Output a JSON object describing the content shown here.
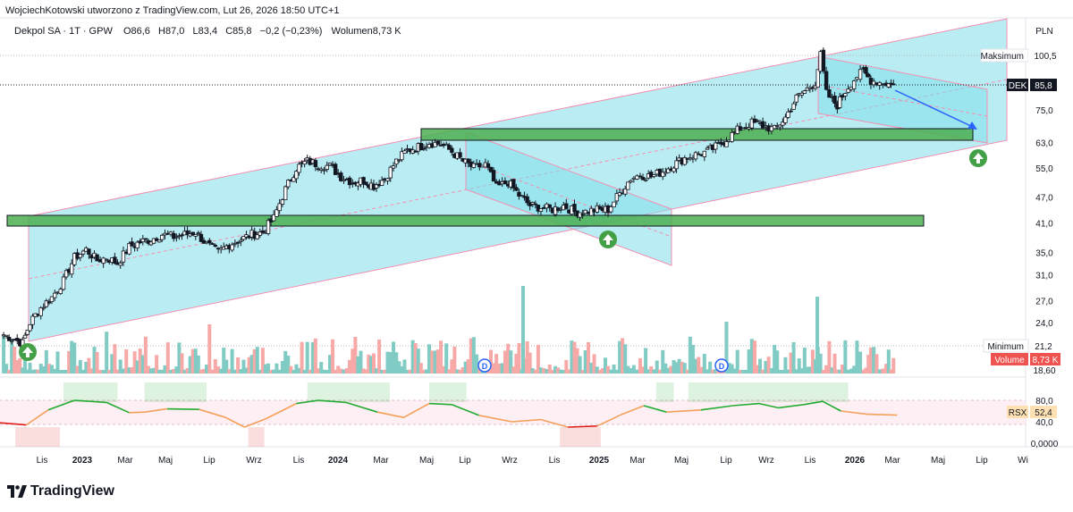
{
  "header": {
    "attribution": "WojciechKotowski utworzono z TradingView.com, Lut 26, 2026 18:50 UTC+1",
    "symbol_line": "Dekpol SA · 1T · GPW",
    "open": "O86,6",
    "high": "H87,0",
    "low": "L83,4",
    "close": "C85,8",
    "change": "−0,2 (−0,23%)",
    "volume": "Wolumen8,73 K"
  },
  "price_axis": {
    "currency": "PLN",
    "ticks": [
      "75,0",
      "63,0",
      "55,0",
      "47,0",
      "41,0",
      "35,0",
      "31,0",
      "27,0",
      "24,0",
      "18,60"
    ],
    "max_label": "Maksimum",
    "max_value": "100,5",
    "min_label": "Minimum",
    "min_value": "21,2",
    "last_symbol": "DEK",
    "last_value": "85,8",
    "volume_label": "Volume",
    "volume_value": "8,73 K"
  },
  "rsx_axis": {
    "ticks": [
      "80,0",
      "40,0",
      "0,0000"
    ],
    "label": "RSX",
    "value": "52,4"
  },
  "time_axis": {
    "labels": [
      "Lis",
      "2023",
      "Mar",
      "Maj",
      "Lip",
      "Wrz",
      "Lis",
      "2024",
      "Mar",
      "Maj",
      "Lip",
      "Wrz",
      "Lis",
      "2025",
      "Mar",
      "Maj",
      "Lip",
      "Wrz",
      "Lis",
      "2026",
      "Mar",
      "Maj",
      "Lip",
      "Wi"
    ],
    "bold": [
      "2023",
      "2024",
      "2025",
      "2026"
    ]
  },
  "annotations": {
    "dividend_marker": "D"
  },
  "footer": {
    "brand": "TradingView"
  },
  "colors": {
    "bull": "#ffffff",
    "bear": "#131722",
    "channel": "#b2ebf2",
    "support_zone": "#4caf50",
    "vol_up": "#80cbc4",
    "vol_down": "#f7a9a7",
    "rsx_up": "#22ab30",
    "rsx_mid": "#f5a05a",
    "rsx_down": "#e01b1b",
    "accent": "#2962ff",
    "last_price_bg": "#131722",
    "volume_bg": "#ef5350"
  },
  "chart_data": {
    "type": "candlestick",
    "title": "Dekpol SA · 1T · GPW",
    "ylabel": "PLN",
    "y_scale": "log",
    "ylim": [
      18.6,
      110
    ],
    "x_range": [
      "2022-10-15",
      "2026-08-20"
    ],
    "series": [
      {
        "name": "Dekpol SA",
        "points": [
          [
            "2022-10-20",
            22.5
          ],
          [
            "2022-11-15",
            21.5
          ],
          [
            "2022-11-25",
            24.0
          ],
          [
            "2022-12-10",
            26.0
          ],
          [
            "2022-12-25",
            27.5
          ],
          [
            "2023-01-10",
            30.0
          ],
          [
            "2023-01-25",
            34.0
          ],
          [
            "2023-02-10",
            35.5
          ],
          [
            "2023-02-25",
            33.5
          ],
          [
            "2023-03-10",
            34.0
          ],
          [
            "2023-03-25",
            33.0
          ],
          [
            "2023-04-10",
            36.0
          ],
          [
            "2023-04-25",
            37.0
          ],
          [
            "2023-05-10",
            37.5
          ],
          [
            "2023-05-25",
            38.5
          ],
          [
            "2023-06-10",
            38.0
          ],
          [
            "2023-06-25",
            38.5
          ],
          [
            "2023-07-10",
            39.0
          ],
          [
            "2023-07-25",
            36.5
          ],
          [
            "2023-08-10",
            35.0
          ],
          [
            "2023-08-25",
            36.5
          ],
          [
            "2023-09-10",
            37.5
          ],
          [
            "2023-09-25",
            38.5
          ],
          [
            "2023-10-10",
            39.0
          ],
          [
            "2023-10-25",
            42.0
          ],
          [
            "2023-11-10",
            49.0
          ],
          [
            "2023-11-25",
            55.0
          ],
          [
            "2023-12-10",
            57.0
          ],
          [
            "2023-12-25",
            56.0
          ],
          [
            "2024-01-10",
            55.5
          ],
          [
            "2024-01-25",
            52.5
          ],
          [
            "2024-02-10",
            51.0
          ],
          [
            "2024-02-25",
            51.5
          ],
          [
            "2024-03-10",
            50.0
          ],
          [
            "2024-03-25",
            52.0
          ],
          [
            "2024-04-10",
            57.0
          ],
          [
            "2024-04-25",
            60.5
          ],
          [
            "2024-05-10",
            61.5
          ],
          [
            "2024-05-25",
            63.0
          ],
          [
            "2024-06-10",
            62.5
          ],
          [
            "2024-06-25",
            60.0
          ],
          [
            "2024-07-10",
            57.0
          ],
          [
            "2024-07-25",
            55.0
          ],
          [
            "2024-08-10",
            56.0
          ],
          [
            "2024-08-25",
            49.5
          ],
          [
            "2024-09-10",
            51.0
          ],
          [
            "2024-09-25",
            47.5
          ],
          [
            "2024-10-10",
            45.0
          ],
          [
            "2024-10-25",
            44.5
          ],
          [
            "2024-11-10",
            44.0
          ],
          [
            "2024-11-25",
            45.0
          ],
          [
            "2024-12-10",
            43.5
          ],
          [
            "2024-12-25",
            43.5
          ],
          [
            "2025-01-10",
            44.0
          ],
          [
            "2025-01-25",
            44.0
          ],
          [
            "2025-02-10",
            48.0
          ],
          [
            "2025-02-25",
            52.0
          ],
          [
            "2025-03-10",
            53.0
          ],
          [
            "2025-03-25",
            52.5
          ],
          [
            "2025-04-10",
            54.0
          ],
          [
            "2025-04-25",
            56.0
          ],
          [
            "2025-05-10",
            58.0
          ],
          [
            "2025-05-25",
            59.0
          ],
          [
            "2025-06-10",
            60.0
          ],
          [
            "2025-06-25",
            62.0
          ],
          [
            "2025-07-10",
            65.0
          ],
          [
            "2025-07-25",
            68.0
          ],
          [
            "2025-08-10",
            70.0
          ],
          [
            "2025-08-25",
            69.0
          ],
          [
            "2025-09-10",
            67.5
          ],
          [
            "2025-09-25",
            72.0
          ],
          [
            "2025-10-10",
            80.0
          ],
          [
            "2025-10-25",
            84.0
          ],
          [
            "2025-11-05",
            87.0
          ],
          [
            "2025-11-12",
            100.5
          ],
          [
            "2025-11-20",
            82.0
          ],
          [
            "2025-11-28",
            79.0
          ],
          [
            "2025-12-05",
            77.0
          ],
          [
            "2025-12-12",
            81.0
          ],
          [
            "2025-12-20",
            85.0
          ],
          [
            "2026-01-01",
            90.0
          ],
          [
            "2026-01-10",
            92.0
          ],
          [
            "2026-01-20",
            88.0
          ],
          [
            "2026-02-01",
            87.0
          ],
          [
            "2026-02-10",
            86.5
          ],
          [
            "2026-02-20",
            85.8
          ]
        ]
      }
    ],
    "volume_series": {
      "name": "Volume",
      "last": "8,73 K"
    },
    "rsx_series": {
      "name": "RSX",
      "last": 52.4,
      "ylim": [
        0,
        100
      ]
    }
  }
}
